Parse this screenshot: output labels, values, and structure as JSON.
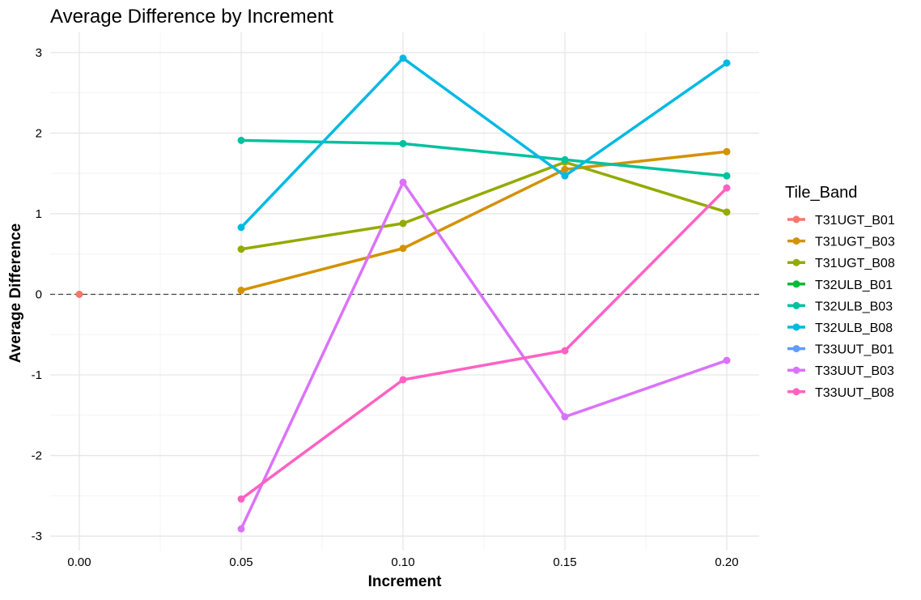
{
  "chart_data": {
    "type": "line",
    "title": "Average Difference by Increment",
    "xlabel": "Increment",
    "ylabel": "Average Difference",
    "x_ticks": [
      "0.00",
      "0.05",
      "0.10",
      "0.15",
      "0.20"
    ],
    "y_ticks": [
      "-3",
      "-2",
      "-1",
      "0",
      "1",
      "2",
      "3"
    ],
    "xlim": [
      -0.009,
      0.21
    ],
    "ylim": [
      -3.18,
      3.25
    ],
    "grid": true,
    "reference_line": {
      "y": 0,
      "style": "dashed"
    },
    "legend_title": "Tile_Band",
    "legend_position": "right",
    "series": [
      {
        "name": "T31UGT_B01",
        "color": "#F8766D",
        "x": [
          0.0
        ],
        "y": [
          0.0
        ]
      },
      {
        "name": "T31UGT_B03",
        "color": "#D39200",
        "x": [
          0.05,
          0.1,
          0.15,
          0.2
        ],
        "y": [
          0.05,
          0.57,
          1.55,
          1.77
        ]
      },
      {
        "name": "T31UGT_B08",
        "color": "#93AA00",
        "x": [
          0.05,
          0.1,
          0.15,
          0.2
        ],
        "y": [
          0.56,
          0.88,
          1.64,
          1.02
        ]
      },
      {
        "name": "T32ULB_B01",
        "color": "#00BA38",
        "x": [],
        "y": []
      },
      {
        "name": "T32ULB_B03",
        "color": "#00C19F",
        "x": [
          0.05,
          0.1,
          0.15,
          0.2
        ],
        "y": [
          1.91,
          1.87,
          1.67,
          1.47
        ]
      },
      {
        "name": "T32ULB_B08",
        "color": "#00B9E3",
        "x": [
          0.05,
          0.1,
          0.15,
          0.2
        ],
        "y": [
          0.83,
          2.93,
          1.47,
          2.87
        ]
      },
      {
        "name": "T33UUT_B01",
        "color": "#619CFF",
        "x": [],
        "y": []
      },
      {
        "name": "T33UUT_B03",
        "color": "#DB72FB",
        "x": [
          0.05,
          0.1,
          0.15,
          0.2
        ],
        "y": [
          -2.91,
          1.39,
          -1.52,
          -0.82
        ]
      },
      {
        "name": "T33UUT_B08",
        "color": "#FF61C3",
        "x": [
          0.05,
          0.1,
          0.15,
          0.2
        ],
        "y": [
          -2.54,
          -1.06,
          -0.7,
          1.32
        ]
      }
    ]
  }
}
